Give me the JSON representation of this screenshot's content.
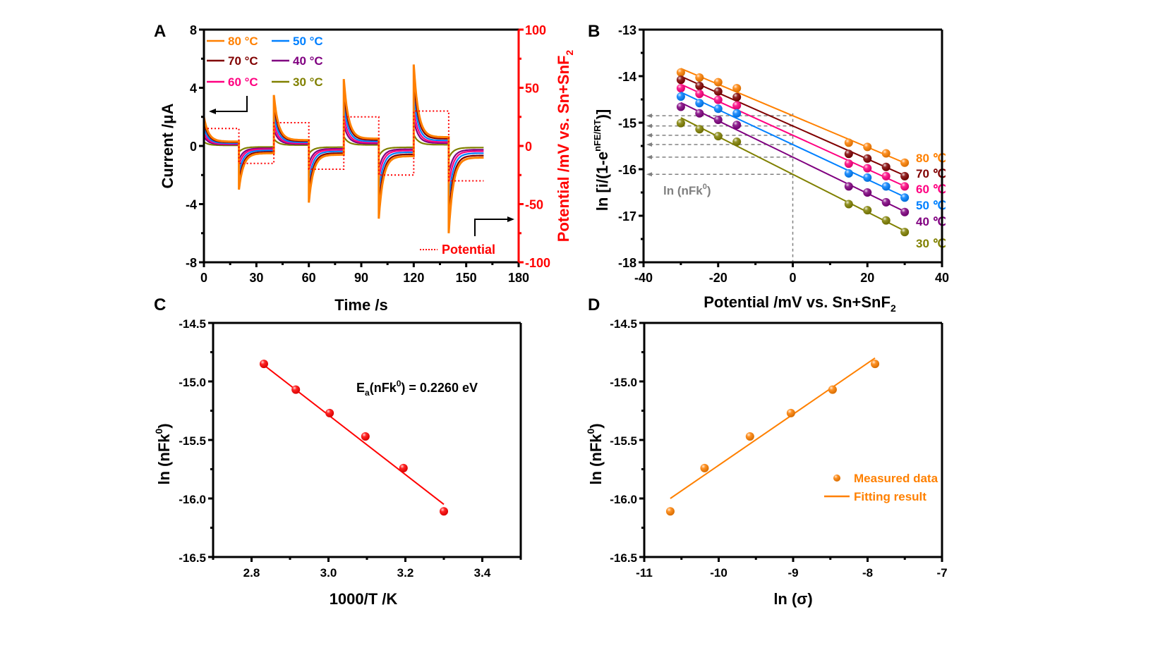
{
  "chart_data": [
    {
      "panel": "A",
      "type": "line",
      "xlabel": "Time /s",
      "ylabel": "Current /μA",
      "y2label": "Potential /mV vs. Sn+SnF",
      "y2label_sub": "2",
      "xlim": [
        0,
        180
      ],
      "ylim": [
        -8,
        8
      ],
      "y2lim": [
        -100,
        100
      ],
      "xticks": [
        "0",
        "30",
        "60",
        "90",
        "120",
        "150",
        "180"
      ],
      "yticks": [
        "-8",
        "-4",
        "0",
        "4",
        "8"
      ],
      "y2ticks": [
        "-100",
        "-50",
        "0",
        "50",
        "100"
      ],
      "legend": [
        {
          "name": "80 °C",
          "color": "#ff8000"
        },
        {
          "name": "50 °C",
          "color": "#0080ff"
        },
        {
          "name": "70 °C",
          "color": "#800000"
        },
        {
          "name": "40 °C",
          "color": "#800080"
        },
        {
          "name": "60 °C",
          "color": "#ff0080"
        },
        {
          "name": "30 °C",
          "color": "#808000"
        }
      ],
      "potential_legend": "Potential",
      "potential_color": "#ff0000",
      "potential_steps_mV": [
        {
          "t0": 0,
          "t1": 20,
          "E": 15
        },
        {
          "t0": 20,
          "t1": 40,
          "E": -15
        },
        {
          "t0": 40,
          "t1": 60,
          "E": 20
        },
        {
          "t0": 60,
          "t1": 80,
          "E": -20
        },
        {
          "t0": 80,
          "t1": 100,
          "E": 25
        },
        {
          "t0": 100,
          "t1": 120,
          "E": -25
        },
        {
          "t0": 120,
          "t1": 140,
          "E": 30
        },
        {
          "t0": 140,
          "t1": 160,
          "E": -30
        }
      ],
      "series_peak_scale": [
        1.0,
        0.62,
        0.82,
        0.32,
        0.45,
        0.14
      ],
      "series_tail_scale": [
        1.0,
        0.62,
        0.82,
        0.32,
        0.45,
        0.14
      ],
      "peak_current_80C_uA": [
        2.0,
        -3.0,
        3.5,
        -3.9,
        4.6,
        -5.0,
        5.6,
        -6.0
      ],
      "tail_current_80C_uA": [
        0.3,
        -0.5,
        0.4,
        -0.6,
        0.5,
        -0.7,
        0.6,
        -0.8
      ]
    },
    {
      "panel": "B",
      "type": "scatter",
      "xlabel": "Potential /mV vs. Sn+SnF",
      "xlabel_sub": "2",
      "ylabel": "ln [i/(1-e",
      "ylabel_sup": "nFE/RT",
      "ylabel_end": ")]",
      "xlim": [
        -40,
        40
      ],
      "ylim": [
        -18,
        -13
      ],
      "xticks": [
        "-40",
        "-20",
        "0",
        "20",
        "40"
      ],
      "yticks": [
        "-18",
        "-17",
        "-16",
        "-15",
        "-14",
        "-13"
      ],
      "annotation": "ln (nFk",
      "annotation_sup": "0",
      "annotation_end": ")",
      "x": [
        -30,
        -25,
        -20,
        -15,
        15,
        20,
        25,
        30
      ],
      "series": [
        {
          "name": "80 ℃",
          "color": "#ff8000",
          "values": [
            -13.92,
            -14.03,
            -14.13,
            -14.26,
            -15.43,
            -15.52,
            -15.66,
            -15.86
          ],
          "intercept": -14.85,
          "slope": -0.0338
        },
        {
          "name": "70 ℃",
          "color": "#800000",
          "values": [
            -14.08,
            -14.21,
            -14.33,
            -14.45,
            -15.67,
            -15.77,
            -15.95,
            -16.15
          ],
          "intercept": -15.07,
          "slope": -0.0355
        },
        {
          "name": "60 ℃",
          "color": "#ff0080",
          "values": [
            -14.26,
            -14.38,
            -14.51,
            -14.63,
            -15.88,
            -15.98,
            -16.15,
            -16.37
          ],
          "intercept": -15.27,
          "slope": -0.0365
        },
        {
          "name": "50 ℃",
          "color": "#0080ff",
          "values": [
            -14.44,
            -14.58,
            -14.7,
            -14.8,
            -16.09,
            -16.18,
            -16.37,
            -16.61
          ],
          "intercept": -15.47,
          "slope": -0.0375
        },
        {
          "name": "40 ℃",
          "color": "#800080",
          "values": [
            -14.66,
            -14.8,
            -14.94,
            -15.05,
            -16.37,
            -16.5,
            -16.71,
            -16.92
          ],
          "intercept": -15.74,
          "slope": -0.039
        },
        {
          "name": "30 ℃",
          "color": "#808000",
          "values": [
            -15.01,
            -15.14,
            -15.29,
            -15.41,
            -16.75,
            -16.88,
            -17.1,
            -17.35
          ],
          "intercept": -16.11,
          "slope": -0.0405
        }
      ],
      "guide_color": "#808080"
    },
    {
      "panel": "C",
      "type": "scatter",
      "xlabel": "1000/T /K",
      "ylabel": "ln (nFk",
      "ylabel_sup": "0",
      "ylabel_end": ")",
      "xlim": [
        2.7,
        3.5
      ],
      "ylim": [
        -16.5,
        -14.5
      ],
      "xticks": [
        "2.8",
        "3.0",
        "3.2",
        "3.4"
      ],
      "xtick_values": [
        2.8,
        3.0,
        3.2,
        3.4
      ],
      "yticks": [
        "-16.5",
        "-16.0",
        "-15.5",
        "-15.0",
        "-14.5"
      ],
      "ytick_values": [
        -16.5,
        -16.0,
        -15.5,
        -15.0,
        -14.5
      ],
      "annotation": "E",
      "annotation_sub": "a",
      "annotation_mid": "(nFk",
      "annotation_sup": "0",
      "annotation_end": ") = 0.2260 eV",
      "color": "#ff0000",
      "x": [
        2.832,
        2.915,
        3.003,
        3.096,
        3.195,
        3.3
      ],
      "y": [
        -14.85,
        -15.07,
        -15.27,
        -15.47,
        -15.74,
        -16.11
      ],
      "fit": {
        "x": [
          2.832,
          3.3
        ],
        "y": [
          -14.86,
          -16.05
        ]
      }
    },
    {
      "panel": "D",
      "type": "scatter",
      "xlabel": "ln (σ)",
      "ylabel": "ln (nFk",
      "ylabel_sup": "0",
      "ylabel_end": ")",
      "xlim": [
        -11,
        -7
      ],
      "ylim": [
        -16.5,
        -14.5
      ],
      "xticks": [
        "-11",
        "-10",
        "-9",
        "-8",
        "-7"
      ],
      "xtick_values": [
        -11,
        -10,
        -9,
        -8,
        -7
      ],
      "yticks": [
        "-16.5",
        "-16.0",
        "-15.5",
        "-15.0",
        "-14.5"
      ],
      "ytick_values": [
        -16.5,
        -16.0,
        -15.5,
        -15.0,
        -14.5
      ],
      "color": "#ff8000",
      "x": [
        -10.65,
        -10.19,
        -9.58,
        -9.03,
        -8.47,
        -7.9
      ],
      "y": [
        -16.11,
        -15.74,
        -15.47,
        -15.27,
        -15.07,
        -14.85
      ],
      "fit": {
        "x": [
          -10.65,
          -7.9
        ],
        "y": [
          -16.0,
          -14.8
        ]
      },
      "legend": [
        {
          "name": "Measured data",
          "kind": "marker"
        },
        {
          "name": "Fitting result",
          "kind": "line"
        }
      ]
    }
  ]
}
